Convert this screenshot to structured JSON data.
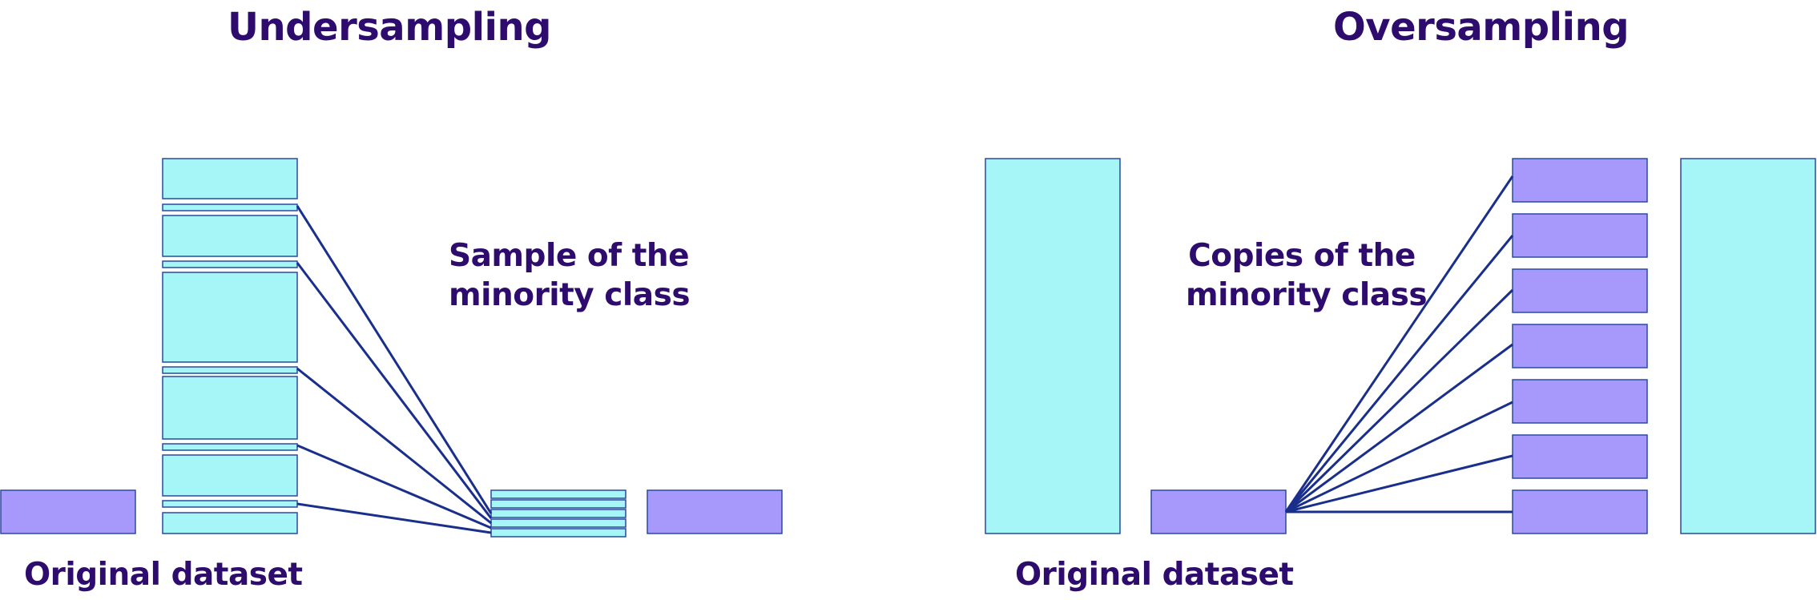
{
  "undersampling": {
    "title": "Undersampling",
    "sample_label_line1": "Sample of the",
    "sample_label_line2": "minority class",
    "original_label": "Original dataset"
  },
  "oversampling": {
    "title": "Oversampling",
    "copies_label_line1": "Copies of the",
    "copies_label_line2": "minority class",
    "original_label": "Original dataset"
  },
  "colors": {
    "majority_fill": "#a6f6f8",
    "minority_fill": "#a799fb",
    "box_stroke": "#2a4aa0",
    "connector": "#1a2f8c",
    "text": "#2e0c6e"
  }
}
